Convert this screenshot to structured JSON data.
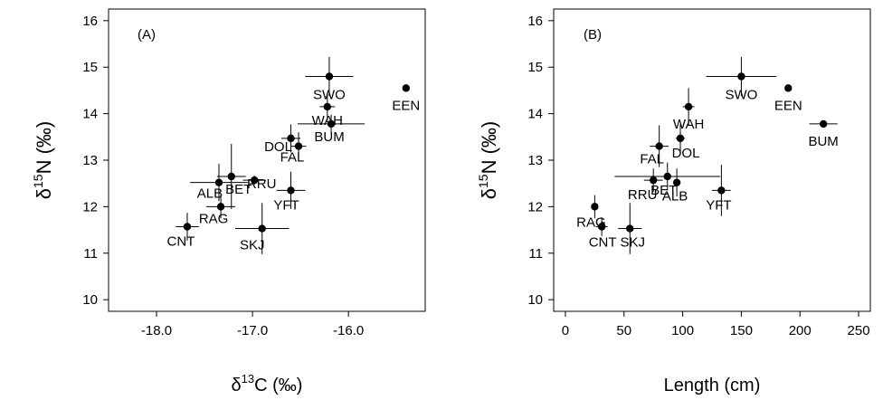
{
  "chart_data": [
    {
      "type": "scatter",
      "panel_label": "(A)",
      "xlabel_prefix": "δ",
      "xlabel_sup": "13",
      "xlabel_main": "C  (‰)",
      "ylabel_prefix": "δ",
      "ylabel_sup": "15",
      "ylabel_main": "N  (‰)",
      "xlim": [
        -18.5,
        -15.2
      ],
      "ylim": [
        9.75,
        16.25
      ],
      "xticks": [
        -18.0,
        -17.0,
        -16.0
      ],
      "xtick_labels": [
        "-18.0",
        "-17.0",
        "-16.0"
      ],
      "yticks": [
        10,
        11,
        12,
        13,
        14,
        15,
        16
      ],
      "ytick_labels": [
        "10",
        "11",
        "12",
        "13",
        "14",
        "15",
        "16"
      ],
      "grid": false,
      "points": [
        {
          "label": "SWO",
          "x": -16.2,
          "y": 14.8,
          "x_err": 0.25,
          "y_err": 0.42
        },
        {
          "label": "EEN",
          "x": -15.4,
          "y": 14.55,
          "x_err": 0,
          "y_err": 0
        },
        {
          "label": "WAH",
          "x": -16.22,
          "y": 14.15,
          "x_err": 0.08,
          "y_err": 0.3
        },
        {
          "label": "BUM",
          "x": -16.18,
          "y": 13.78,
          "x_err": 0.35,
          "y_err": 0.2
        },
        {
          "label": "DOL",
          "x": -16.6,
          "y": 13.47,
          "x_err": 0.1,
          "y_err": 0.3
        },
        {
          "label": "FAL",
          "x": -16.52,
          "y": 13.3,
          "x_err": 0.08,
          "y_err": 0.3
        },
        {
          "label": "YFT",
          "x": -16.6,
          "y": 12.35,
          "x_err": 0.15,
          "y_err": 0.4
        },
        {
          "label": "BET",
          "x": -17.22,
          "y": 12.65,
          "x_err": 0.15,
          "y_err": 0.7
        },
        {
          "label": "RRU",
          "x": -16.98,
          "y": 12.57,
          "x_err": 0.12,
          "y_err": 0.1
        },
        {
          "label": "ALB",
          "x": -17.35,
          "y": 12.52,
          "x_err": 0.3,
          "y_err": 0.4
        },
        {
          "label": "RAG",
          "x": -17.33,
          "y": 12.0,
          "x_err": 0.15,
          "y_err": 0.25
        },
        {
          "label": "SKJ",
          "x": -16.9,
          "y": 11.53,
          "x_err": 0.28,
          "y_err": 0.55
        },
        {
          "label": "CNT",
          "x": -17.68,
          "y": 11.57,
          "x_err": 0.12,
          "y_err": 0.3
        }
      ]
    },
    {
      "type": "scatter",
      "panel_label": "(B)",
      "xlabel_main": "Length (cm)",
      "ylabel_prefix": "δ",
      "ylabel_sup": "15",
      "ylabel_main": "N  (‰)",
      "xlim": [
        -10,
        260
      ],
      "ylim": [
        9.75,
        16.25
      ],
      "xticks": [
        0,
        50,
        100,
        150,
        200,
        250
      ],
      "xtick_labels": [
        "0",
        "50",
        "100",
        "150",
        "200",
        "250"
      ],
      "yticks": [
        10,
        11,
        12,
        13,
        14,
        15,
        16
      ],
      "ytick_labels": [
        "10",
        "11",
        "12",
        "13",
        "14",
        "15",
        "16"
      ],
      "grid": false,
      "points": [
        {
          "label": "SWO",
          "x": 150,
          "y": 14.8,
          "x_err": 30,
          "y_err": 0.42
        },
        {
          "label": "EEN",
          "x": 190,
          "y": 14.55,
          "x_err": 0,
          "y_err": 0
        },
        {
          "label": "BUM",
          "x": 220,
          "y": 13.78,
          "x_err": 12,
          "y_err": 0
        },
        {
          "label": "WAH",
          "x": 105,
          "y": 14.15,
          "x_err": 5,
          "y_err": 0.4
        },
        {
          "label": "DOL",
          "x": 98,
          "y": 13.47,
          "x_err": 4,
          "y_err": 0.3
        },
        {
          "label": "FAL",
          "x": 80,
          "y": 13.3,
          "x_err": 8,
          "y_err": 0.45
        },
        {
          "label": "YFT",
          "x": 133,
          "y": 12.35,
          "x_err": 8,
          "y_err": 0.55
        },
        {
          "label": "BET",
          "x": 87,
          "y": 12.65,
          "x_err": 45,
          "y_err": 0.3
        },
        {
          "label": "RRU",
          "x": 75,
          "y": 12.57,
          "x_err": 8,
          "y_err": 0.25
        },
        {
          "label": "ALB",
          "x": 95,
          "y": 12.52,
          "x_err": 3,
          "y_err": 0.3
        },
        {
          "label": "RAG",
          "x": 25,
          "y": 12.0,
          "x_err": 0,
          "y_err": 0.25
        },
        {
          "label": "SKJ",
          "x": 55,
          "y": 11.53,
          "x_err": 10,
          "y_err": 0.55
        },
        {
          "label": "CNT",
          "x": 31,
          "y": 11.57,
          "x_err": 5,
          "y_err": 0.2
        }
      ]
    }
  ]
}
